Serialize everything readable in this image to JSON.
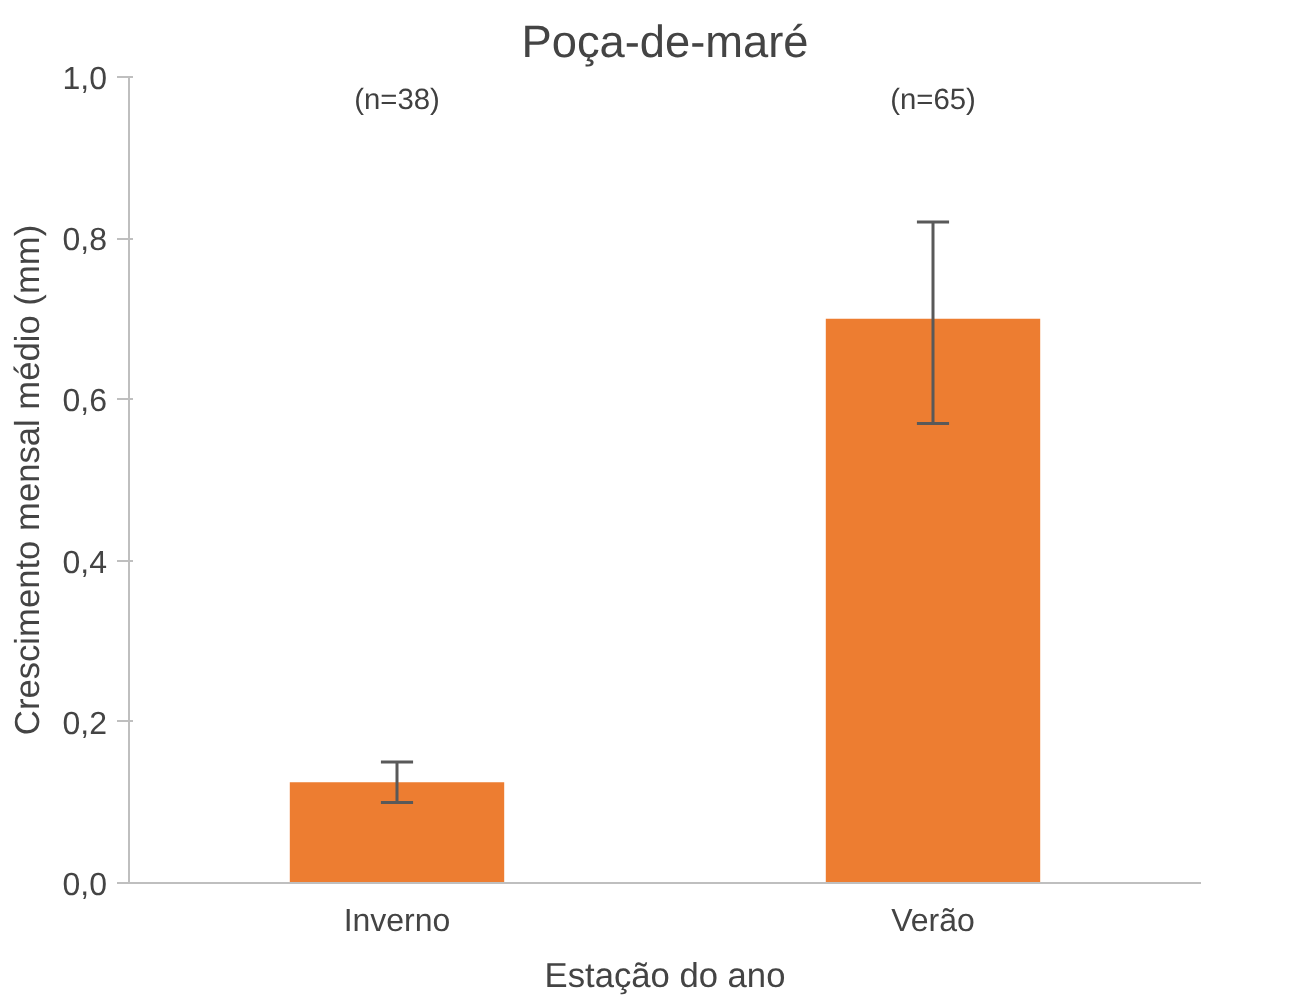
{
  "chart_data": {
    "type": "bar",
    "title": "Poça-de-maré",
    "xlabel": "Estação do ano",
    "ylabel": "Crescimento mensal médio (mm)",
    "categories": [
      "Inverno",
      "Verão"
    ],
    "color": "#ed7d31",
    "values": [
      0.125,
      0.7
    ],
    "errors": [
      [
        0.1,
        0.15
      ],
      [
        0.57,
        0.82
      ]
    ],
    "ylim": [
      0,
      1
    ],
    "yticks": [
      {
        "value": 0,
        "label": "0,0"
      },
      {
        "value": 0.2,
        "label": "0,2"
      },
      {
        "value": 0.4,
        "label": "0,4"
      },
      {
        "value": 0.6,
        "label": "0,6"
      },
      {
        "value": 0.8,
        "label": "0,8"
      },
      {
        "value": 1,
        "label": "1,0"
      }
    ],
    "annotations": [
      "(n=38)",
      "(n=65)"
    ],
    "grid": false
  }
}
